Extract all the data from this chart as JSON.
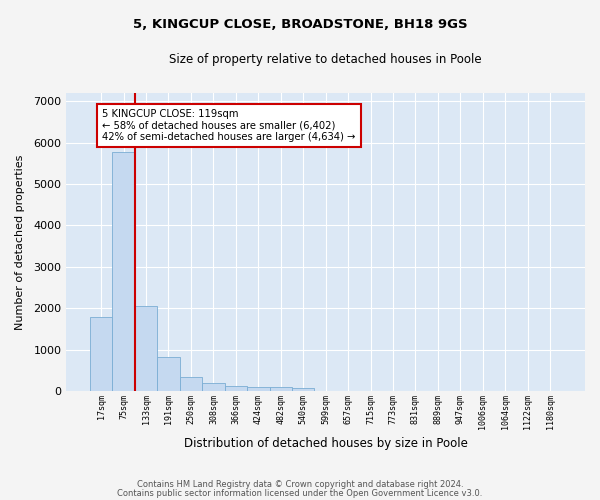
{
  "title": "5, KINGCUP CLOSE, BROADSTONE, BH18 9GS",
  "subtitle": "Size of property relative to detached houses in Poole",
  "xlabel": "Distribution of detached houses by size in Poole",
  "ylabel": "Number of detached properties",
  "categories": [
    "17sqm",
    "75sqm",
    "133sqm",
    "191sqm",
    "250sqm",
    "308sqm",
    "366sqm",
    "424sqm",
    "482sqm",
    "540sqm",
    "599sqm",
    "657sqm",
    "715sqm",
    "773sqm",
    "831sqm",
    "889sqm",
    "947sqm",
    "1006sqm",
    "1064sqm",
    "1122sqm",
    "1180sqm"
  ],
  "values": [
    1780,
    5780,
    2060,
    820,
    340,
    185,
    110,
    100,
    90,
    70,
    0,
    0,
    0,
    0,
    0,
    0,
    0,
    0,
    0,
    0,
    0
  ],
  "bar_color": "#c5d9f0",
  "bar_edge_color": "#7aadd4",
  "vline_color": "#cc0000",
  "vline_x": 1.5,
  "annotation_text": "5 KINGCUP CLOSE: 119sqm\n← 58% of detached houses are smaller (6,402)\n42% of semi-detached houses are larger (4,634) →",
  "annotation_box_color": "#ffffff",
  "annotation_box_edge": "#cc0000",
  "ylim": [
    0,
    7200
  ],
  "yticks": [
    0,
    1000,
    2000,
    3000,
    4000,
    5000,
    6000,
    7000
  ],
  "footer1": "Contains HM Land Registry data © Crown copyright and database right 2024.",
  "footer2": "Contains public sector information licensed under the Open Government Licence v3.0.",
  "fig_background": "#f4f4f4",
  "axes_background": "#dce8f5",
  "grid_color": "#ffffff"
}
